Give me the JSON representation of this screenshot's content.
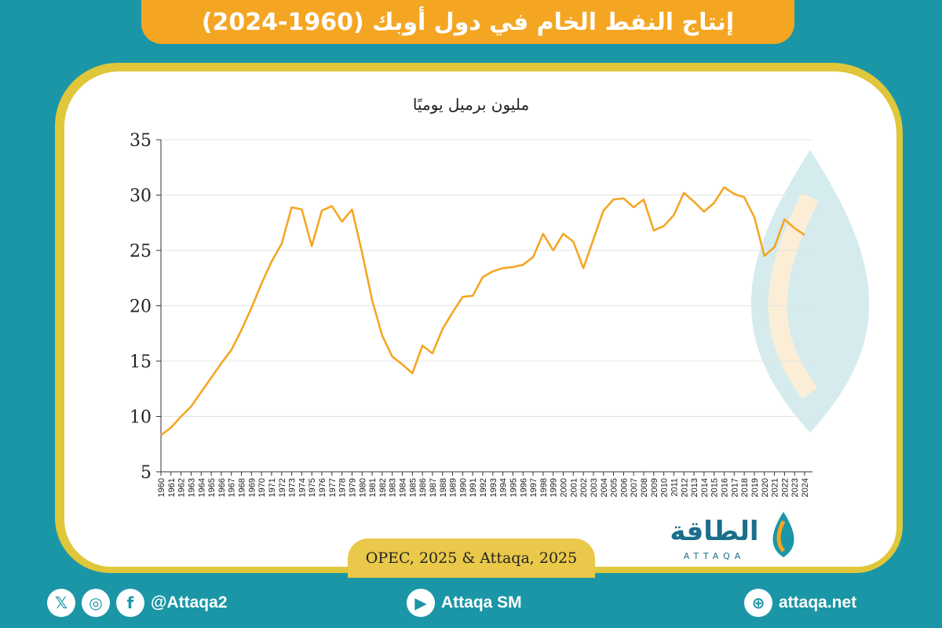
{
  "header": {
    "title": "إنتاج النفط الخام في دول أوبك (1960-2024)"
  },
  "chart_data": {
    "type": "line",
    "title": "",
    "ylabel": "مليون برميل يوميًا",
    "xlabel": "",
    "ylim": [
      5,
      35
    ],
    "yticks": [
      5,
      10,
      15,
      20,
      25,
      30,
      35
    ],
    "grid": true,
    "color": "#f4a623",
    "x": [
      1960,
      1961,
      1962,
      1963,
      1964,
      1965,
      1966,
      1967,
      1968,
      1969,
      1970,
      1971,
      1972,
      1973,
      1974,
      1975,
      1976,
      1977,
      1978,
      1979,
      1980,
      1981,
      1982,
      1983,
      1984,
      1985,
      1986,
      1987,
      1988,
      1989,
      1990,
      1991,
      1992,
      1993,
      1994,
      1995,
      1996,
      1997,
      1998,
      1999,
      2000,
      2001,
      2002,
      2003,
      2004,
      2005,
      2006,
      2007,
      2008,
      2009,
      2010,
      2011,
      2012,
      2013,
      2014,
      2015,
      2016,
      2017,
      2018,
      2019,
      2020,
      2021,
      2022,
      2023,
      2024
    ],
    "series": [
      {
        "values": [
          8.3,
          9.0,
          10.0,
          10.9,
          12.2,
          13.5,
          14.8,
          16.0,
          17.8,
          19.8,
          22.0,
          24.0,
          25.6,
          28.9,
          28.7,
          25.4,
          28.6,
          29.0,
          27.6,
          28.7,
          24.8,
          20.5,
          17.3,
          15.4,
          14.7,
          13.9,
          16.4,
          15.7,
          17.9,
          19.4,
          20.8,
          20.9,
          22.6,
          23.1,
          23.4,
          23.5,
          23.7,
          24.4,
          26.5,
          25.0,
          26.5,
          25.8,
          23.4,
          26.0,
          28.6,
          29.6,
          29.7,
          28.9,
          29.6,
          26.8,
          27.2,
          28.2,
          30.2,
          29.4,
          28.5,
          29.3,
          30.7,
          30.1,
          29.8,
          28.0,
          24.5,
          25.3,
          27.8,
          27.0,
          26.4
        ]
      }
    ]
  },
  "source": {
    "text": "OPEC, 2025 & Attaqa, 2025"
  },
  "logo": {
    "arabic": "الطاقة",
    "latin": "ATTAQA"
  },
  "footer": {
    "social_handle": "@Attaqa2",
    "youtube": "Attaqa SM",
    "website": "attaqa.net",
    "icons": [
      "x-icon",
      "instagram-icon",
      "facebook-icon",
      "youtube-icon",
      "globe-icon"
    ]
  }
}
